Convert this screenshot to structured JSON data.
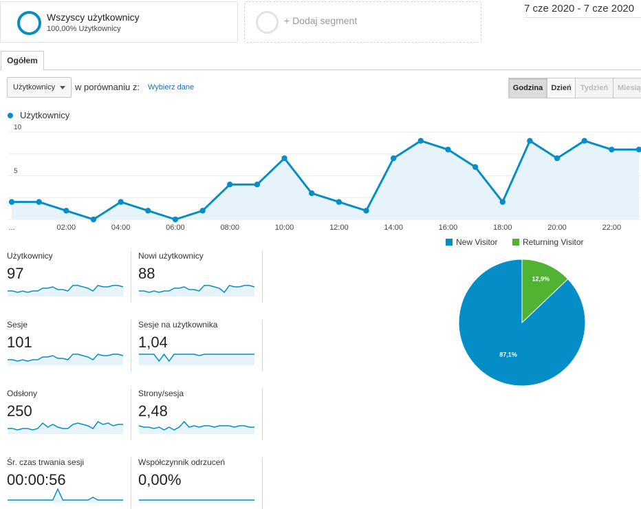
{
  "segments": {
    "active": {
      "title": "Wszyscy użytkownicy",
      "subtitle": "100,00% Użytkownicy"
    },
    "add_label": "+ Dodaj segment"
  },
  "date_range": "7 cze 2020 - 7 cze 2020",
  "tabs": {
    "overview": "Ogółem"
  },
  "controls": {
    "metric_select": "Użytkownicy",
    "compare_label": "w porównaniu z:",
    "choose_data": "Wybierz dane",
    "periods": [
      {
        "label": "Godzina",
        "state": "selected"
      },
      {
        "label": "Dzień",
        "state": "normal"
      },
      {
        "label": "Tydzień",
        "state": "disabled"
      },
      {
        "label": "Miesiąc",
        "state": "disabled"
      }
    ]
  },
  "colors": {
    "accent": "#058dc7",
    "fill": "#e6f3fa",
    "returning": "#50b432",
    "link": "#1a6dba"
  },
  "chart_data": [
    {
      "type": "area",
      "series": [
        {
          "name": "Użytkownicy",
          "values": [
            2,
            2,
            1,
            0,
            2,
            1,
            0,
            1,
            4,
            4,
            7,
            3,
            2,
            1,
            7,
            9,
            8,
            6,
            2,
            9,
            7,
            9,
            8,
            8
          ]
        }
      ],
      "x_tick_labels": [
        "...",
        "02:00",
        "04:00",
        "06:00",
        "08:00",
        "10:00",
        "12:00",
        "14:00",
        "16:00",
        "18:00",
        "20:00",
        "22:00"
      ],
      "y_tick_labels": [
        "5",
        "10"
      ],
      "ylim": [
        0,
        10
      ],
      "grid": true
    },
    {
      "type": "pie",
      "legend_position": "top",
      "slices": [
        {
          "label": "New Visitor",
          "value": 87.1,
          "text": "87,1%",
          "color": "#058dc7"
        },
        {
          "label": "Returning Visitor",
          "value": 12.9,
          "text": "12,9%",
          "color": "#50b432"
        }
      ]
    }
  ],
  "scorecards": [
    {
      "label": "Użytkownicy",
      "value": "97",
      "sparkline": [
        3,
        3,
        2,
        3,
        2,
        3,
        3,
        5,
        5,
        6,
        4,
        4,
        3,
        7,
        7,
        6,
        5,
        3,
        7,
        6,
        6,
        7,
        7,
        6
      ]
    },
    {
      "label": "Nowi użytkownicy",
      "value": "88",
      "sparkline": [
        3,
        3,
        2,
        3,
        2,
        3,
        3,
        5,
        5,
        6,
        4,
        4,
        3,
        7,
        7,
        6,
        5,
        2,
        7,
        6,
        6,
        7,
        7,
        6
      ]
    },
    {
      "label": "Sesje",
      "value": "101",
      "sparkline": [
        3,
        3,
        2,
        3,
        2,
        3,
        3,
        5,
        5,
        6,
        4,
        4,
        3,
        7,
        7,
        6,
        5,
        3,
        7,
        6,
        6,
        7,
        7,
        6
      ]
    },
    {
      "label": "Sesje na użytkownika",
      "value": "1,04",
      "sparkline": [
        7,
        7,
        7,
        7,
        2,
        7,
        2,
        7,
        7,
        7,
        7,
        7,
        6,
        7,
        7,
        7,
        7,
        7,
        7,
        7,
        7,
        7,
        7,
        7
      ]
    },
    {
      "label": "Odsłony",
      "value": "250",
      "sparkline": [
        3,
        3,
        2,
        3,
        3,
        2,
        3,
        7,
        4,
        6,
        4,
        3,
        3,
        6,
        7,
        6,
        5,
        3,
        8,
        6,
        7,
        5,
        6,
        6
      ]
    },
    {
      "label": "Strony/sesja",
      "value": "2,48",
      "sparkline": [
        5,
        4,
        4,
        3,
        4,
        2,
        4,
        2,
        4,
        8,
        4,
        5,
        4,
        5,
        5,
        4,
        5,
        5,
        5,
        4,
        5,
        5,
        4,
        4
      ]
    },
    {
      "label": "Śr. czas trwania sesji",
      "value": "00:00:56",
      "sparkline": [
        1,
        1,
        1,
        1,
        1,
        1,
        1,
        1,
        1,
        1,
        9,
        1,
        1,
        1,
        1,
        1,
        1,
        3,
        1,
        1,
        1,
        1,
        1,
        1
      ]
    },
    {
      "label": "Współczynnik odrzuceń",
      "value": "0,00%",
      "sparkline": [
        1,
        1,
        1,
        1,
        1,
        1,
        1,
        1,
        1,
        1,
        1,
        1,
        1,
        1,
        1,
        1,
        1,
        1,
        1,
        1,
        1,
        1,
        1,
        1
      ]
    }
  ]
}
